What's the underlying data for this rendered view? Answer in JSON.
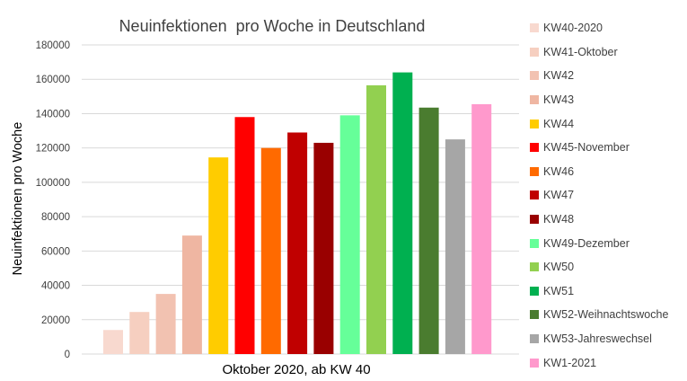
{
  "chart_data": {
    "type": "bar",
    "title": "Neuinfektionen  pro Woche in Deutschland",
    "xlabel": "Oktober 2020, ab KW 40",
    "ylabel": "Neuinfektionen pro Woche",
    "ylim": [
      0,
      180000
    ],
    "yticks": [
      "0",
      "20000",
      "40000",
      "60000",
      "80000",
      "100000",
      "120000",
      "140000",
      "160000",
      "180000"
    ],
    "grid": true,
    "legend_position": "right",
    "categories": [
      "KW40-2020",
      "KW41-Oktober",
      "KW42",
      "KW43",
      "KW44",
      "KW45-November",
      "KW46",
      "KW47",
      "KW48",
      "KW49-Dezember",
      "KW50",
      "KW51",
      "KW52-Weihnachtswoche",
      "KW53-Jahreswechsel",
      "KW1-2021"
    ],
    "values": [
      14000,
      24500,
      35000,
      69000,
      114500,
      138000,
      120000,
      129000,
      123000,
      139000,
      156500,
      164000,
      143500,
      125000,
      145500
    ],
    "colors": [
      "#f8d9cf",
      "#f6cfc0",
      "#f2c2b1",
      "#efb6a2",
      "#ffcc00",
      "#ff0000",
      "#ff6a00",
      "#c00000",
      "#990000",
      "#66ff99",
      "#92d050",
      "#00b050",
      "#4a7c2f",
      "#a6a6a6",
      "#ff99cc"
    ]
  }
}
